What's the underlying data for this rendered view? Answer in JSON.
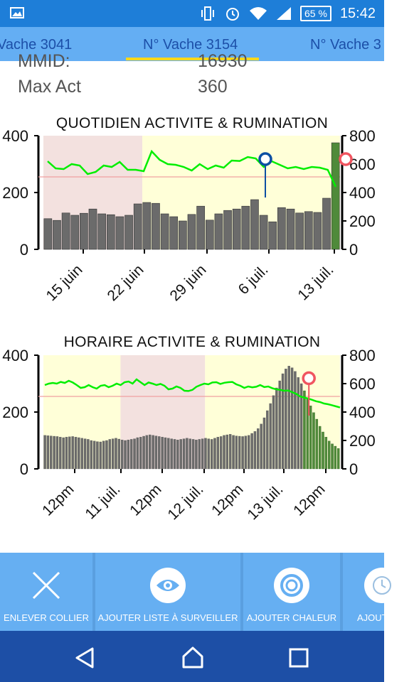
{
  "status_bar": {
    "battery": "65 %",
    "time": "15:42",
    "icons": [
      "image-icon",
      "vibrate-icon",
      "alarm-icon",
      "wifi-icon",
      "signal-icon",
      "battery-icon"
    ]
  },
  "tabs": [
    {
      "label": "Vache 3041"
    },
    {
      "label": "N° Vache 3154"
    },
    {
      "label": "N° Vache 3"
    }
  ],
  "info": {
    "mmid_label": "MMID:",
    "mmid_value": "16930",
    "maxact_label": "Max Act",
    "maxact_value": "360"
  },
  "colors": {
    "status": "#1e7ed8",
    "tabs": "#64aef3",
    "tab_text": "#1c4fa8",
    "indicator": "#ffd81a",
    "rumination": "#00ee00",
    "bar_gray": "#6b6b6b",
    "bar_green": "#4f8a3a",
    "plot_yellow": "#ffffd8",
    "plot_pink": "#f3e1df",
    "ref_line": "#f0a0a0",
    "marker_blue": "#0c4fa3",
    "marker_red": "#f05560",
    "actions": "#66aff2",
    "nav": "#1d4fa6"
  },
  "chart_data": [
    {
      "type": "bar",
      "title": "QUOTIDIEN  ACTIVITE & RUMINATION",
      "xlabel": "",
      "ylabel": "",
      "ylim_left": [
        0,
        400
      ],
      "ylim_right": [
        0,
        800
      ],
      "left_ticks": [
        "0",
        "200",
        "400"
      ],
      "right_ticks": [
        "0",
        "200",
        "400",
        "600",
        "800"
      ],
      "x_tick_labels": [
        "15 juin",
        "22 juin",
        "29 juin",
        "6 juil.",
        "13 juil."
      ],
      "x_tick_positions": [
        3,
        10,
        17,
        24,
        31
      ],
      "reference_line": 255,
      "series": [
        {
          "name": "",
          "axis": "left",
          "kind": "bar",
          "values": [
            108,
            102,
            128,
            120,
            127,
            142,
            125,
            122,
            115,
            120,
            160,
            165,
            162,
            125,
            115,
            100,
            123,
            152,
            103,
            125,
            137,
            142,
            152,
            175,
            120,
            97,
            147,
            142,
            128,
            133,
            130,
            180,
            375
          ]
        },
        {
          "name": "",
          "axis": "right",
          "kind": "line",
          "values": [
            620,
            570,
            565,
            600,
            590,
            530,
            545,
            590,
            580,
            615,
            560,
            560,
            550,
            690,
            630,
            600,
            595,
            580,
            555,
            600,
            565,
            590,
            575,
            625,
            622,
            650,
            640,
            580,
            620,
            595,
            570,
            580,
            565,
            580,
            575,
            560,
            440
          ]
        }
      ],
      "markers": [
        {
          "x": 24.5,
          "y_right": 635,
          "color": "blue"
        },
        {
          "x": 33.6,
          "y_right": 635,
          "color": "red"
        }
      ],
      "shaded_regions": [
        {
          "from": 0,
          "to": 11,
          "color": "pink"
        },
        {
          "from": 11,
          "to": 33,
          "color": "yellow"
        }
      ]
    },
    {
      "type": "bar",
      "title": "HORAIRE  ACTIVITE & RUMINATION",
      "xlabel": "",
      "ylabel": "",
      "ylim_left": [
        0,
        400
      ],
      "ylim_right": [
        0,
        800
      ],
      "left_ticks": [
        "0",
        "200",
        "400"
      ],
      "right_ticks": [
        "0",
        "200",
        "400",
        "600",
        "800"
      ],
      "x_tick_labels": [
        "12pm",
        "11 juil.",
        "12pm",
        "12 juil.",
        "12pm",
        "13 juil.",
        "12pm"
      ],
      "x_tick_positions": [
        6,
        12,
        18,
        24,
        30,
        36,
        42
      ],
      "reference_line": 255,
      "bars": {
        "values": [
          118,
          117,
          116,
          115,
          114,
          112,
          110,
          112,
          113,
          114,
          112,
          110,
          108,
          106,
          104,
          100,
          98,
          96,
          95,
          98,
          100,
          104,
          106,
          108,
          105,
          102,
          100,
          102,
          104,
          106,
          110,
          112,
          115,
          118,
          120,
          118,
          116,
          114,
          112,
          110,
          108,
          106,
          104,
          102,
          104,
          106,
          108,
          106,
          104,
          102,
          104,
          106,
          108,
          106,
          104,
          108,
          112,
          114,
          118,
          120,
          122,
          118,
          116,
          115,
          114,
          116,
          118,
          125,
          132,
          142,
          158,
          180,
          205,
          230,
          258,
          285,
          310,
          335,
          352,
          362,
          356,
          343,
          322,
          300,
          275,
          250,
          222,
          198,
          175,
          150,
          130,
          112,
          98,
          88,
          80,
          72
        ],
        "green_from": 0.87
      },
      "rumination_line": [
        590,
        600,
        605,
        600,
        612,
        605,
        620,
        608,
        590,
        570,
        575,
        590,
        575,
        565,
        585,
        590,
        575,
        585,
        600,
        590,
        610,
        615,
        600,
        630,
        610,
        590,
        608,
        600,
        590,
        598,
        585,
        560,
        565,
        580,
        570,
        550,
        548,
        556,
        578,
        590,
        600,
        595,
        608,
        610,
        598,
        606,
        610,
        612,
        595,
        585,
        570,
        580,
        574,
        578,
        590,
        576,
        580,
        568,
        560,
        556,
        550,
        552,
        540,
        528,
        510,
        502,
        495,
        486,
        476,
        470,
        460,
        455,
        448,
        440,
        432
      ],
      "markers": [
        {
          "x": 0.895,
          "y_right": 638,
          "color": "red"
        }
      ],
      "shaded_regions": [
        {
          "from": 0,
          "to": 0.26,
          "color": "yellow"
        },
        {
          "from": 0.26,
          "to": 0.545,
          "color": "pink"
        },
        {
          "from": 0.545,
          "to": 1,
          "color": "yellow"
        }
      ]
    }
  ],
  "actions": [
    {
      "label": "ENLEVER COLLIER",
      "icon": "close-icon"
    },
    {
      "label": "AJOUTER LISTE À SURVEILLER",
      "icon": "eye-icon"
    },
    {
      "label": "AJOUTER CHALEUR",
      "icon": "target-icon"
    },
    {
      "label": "AJOUT",
      "icon": "clock-icon"
    }
  ],
  "nav": [
    "back-icon",
    "home-icon",
    "recents-icon"
  ]
}
